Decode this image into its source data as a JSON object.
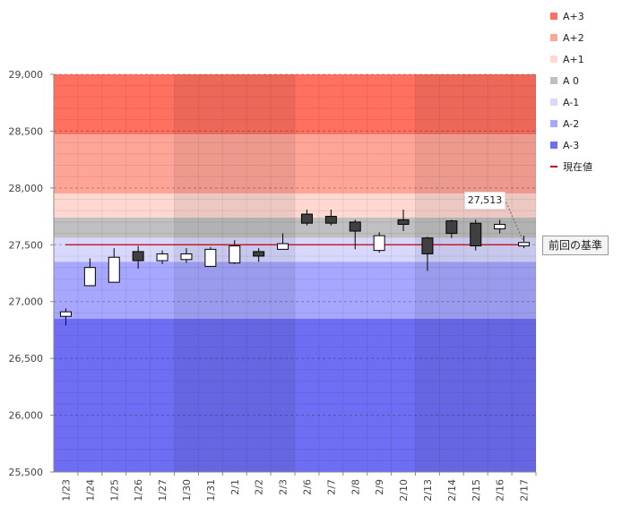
{
  "chart_data": {
    "type": "candlestick",
    "categories": [
      "1/23",
      "1/24",
      "1/25",
      "1/26",
      "1/27",
      "1/30",
      "1/31",
      "2/1",
      "2/2",
      "2/3",
      "2/6",
      "2/7",
      "2/8",
      "2/9",
      "2/10",
      "2/13",
      "2/14",
      "2/15",
      "2/16",
      "2/17"
    ],
    "open": [
      26870,
      27140,
      27170,
      27440,
      27360,
      27370,
      27310,
      27340,
      27440,
      27460,
      27770,
      27750,
      27700,
      27450,
      27720,
      27560,
      27710,
      27690,
      27640,
      27490
    ],
    "close": [
      26910,
      27300,
      27390,
      27360,
      27420,
      27420,
      27460,
      27490,
      27400,
      27510,
      27690,
      27690,
      27620,
      27580,
      27680,
      27420,
      27600,
      27490,
      27680,
      27520
    ],
    "high": [
      26940,
      27380,
      27470,
      27490,
      27450,
      27470,
      27480,
      27540,
      27470,
      27600,
      27810,
      27810,
      27720,
      27610,
      27810,
      27570,
      27720,
      27720,
      27720,
      27580
    ],
    "low": [
      26790,
      27140,
      27170,
      27290,
      27330,
      27340,
      27310,
      27330,
      27350,
      27460,
      27670,
      27670,
      27460,
      27430,
      27620,
      27270,
      27560,
      27450,
      27600,
      27470
    ],
    "ylim": [
      25500,
      29000
    ],
    "yticks": [
      "29,000",
      "28,500",
      "28,000",
      "27,500",
      "27,000",
      "26,500",
      "26,000",
      "25,500"
    ],
    "ytick_values": [
      29000,
      28500,
      28000,
      27500,
      27000,
      26500,
      26000,
      25500
    ],
    "reference_value": 27500,
    "bands": [
      {
        "name": "A+3",
        "from": 28470,
        "to": 29000,
        "color": "#ff7060"
      },
      {
        "name": "A+2",
        "from": 27950,
        "to": 28470,
        "color": "#ffa598"
      },
      {
        "name": "A+1",
        "from": 27740,
        "to": 27950,
        "color": "#ffd8d2"
      },
      {
        "name": "A 0",
        "from": 27560,
        "to": 27740,
        "color": "#c0c0c0"
      },
      {
        "name": "A-1",
        "from": 27350,
        "to": 27560,
        "color": "#d8d8ff"
      },
      {
        "name": "A-2",
        "from": 26850,
        "to": 27350,
        "color": "#a7a7ff"
      },
      {
        "name": "A-3",
        "from": 25500,
        "to": 26850,
        "color": "#6e6ef5"
      }
    ],
    "week_shading_groups": [
      [
        0,
        4
      ],
      [
        5,
        9
      ],
      [
        10,
        14
      ],
      [
        15,
        19
      ]
    ],
    "legend": [
      {
        "label": "A+3",
        "color": "#ff7060",
        "kind": "box"
      },
      {
        "label": "A+2",
        "color": "#ffa598",
        "kind": "box"
      },
      {
        "label": "A+1",
        "color": "#ffd8d2",
        "kind": "box"
      },
      {
        "label": "A 0",
        "color": "#c0c0c0",
        "kind": "box"
      },
      {
        "label": "A-1",
        "color": "#d8d8ff",
        "kind": "box"
      },
      {
        "label": "A-2",
        "color": "#a7a7ff",
        "kind": "box"
      },
      {
        "label": "A-3",
        "color": "#6e6ef5",
        "kind": "box"
      },
      {
        "label": "現在値",
        "color": "#c00000",
        "kind": "line"
      }
    ],
    "last_value_label": "27,513",
    "reference_label": "前回の基準",
    "up_color": "#ffffff",
    "down_color": "#404040",
    "reference_line_color": "#c00000"
  }
}
